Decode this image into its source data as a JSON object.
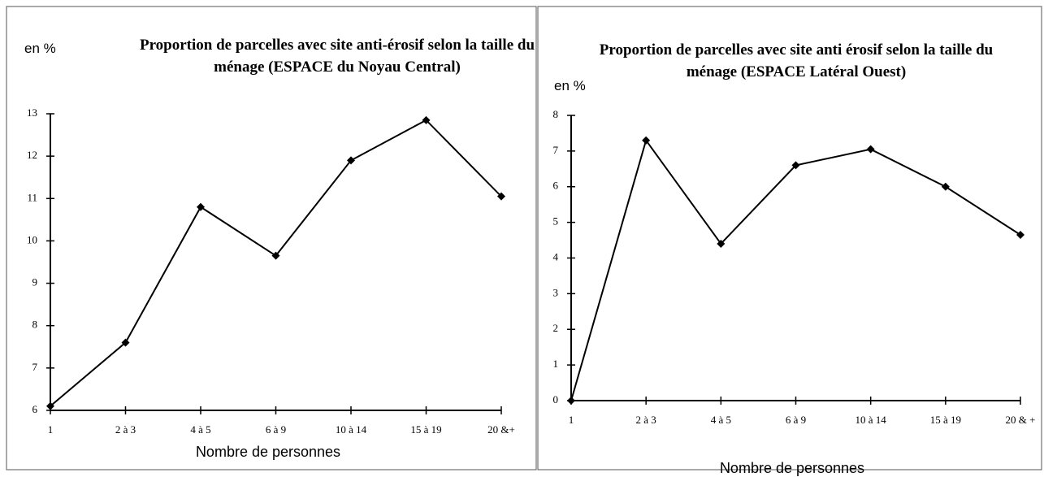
{
  "chart_data": [
    {
      "type": "line",
      "title": "Proportion de parcelles avec site anti-érosif selon la taille du ménage (ESPACE du Noyau Central)",
      "y_label": "en %",
      "x_label": "Nombre de personnes",
      "categories": [
        "1",
        "2 à 3",
        "4 à 5",
        "6 à 9",
        "10 à 14",
        "15 à 19",
        "20 &+"
      ],
      "values": [
        6.1,
        7.6,
        10.8,
        9.65,
        11.9,
        12.85,
        11.05
      ],
      "color": "#000000",
      "ylim": [
        6,
        13
      ],
      "yticks": [
        6,
        7,
        8,
        9,
        10,
        11,
        12,
        13
      ]
    },
    {
      "type": "line",
      "title": "Proportion de parcelles avec site anti érosif selon la taille du ménage (ESPACE Latéral Ouest)",
      "y_label": "en %",
      "x_label": "Nombre de personnes",
      "categories": [
        "1",
        "2 à 3",
        "4 à 5",
        "6 à 9",
        "10 à 14",
        "15 à 19",
        "20 & +"
      ],
      "values": [
        0,
        7.3,
        4.4,
        6.6,
        7.05,
        6.0,
        4.65
      ],
      "color": "#000000",
      "ylim": [
        0,
        8
      ],
      "yticks": [
        0,
        1,
        2,
        3,
        4,
        5,
        6,
        7,
        8
      ]
    }
  ]
}
